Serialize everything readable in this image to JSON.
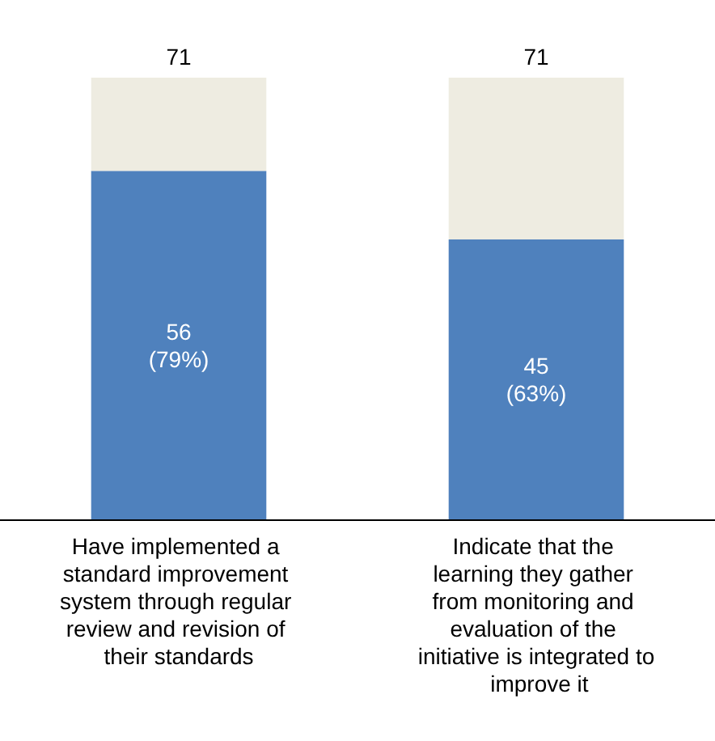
{
  "chart_data": {
    "type": "bar",
    "stacked": true,
    "categories": [
      "Have implemented a standard improvement system through regular review and revision of their standards",
      "Indicate that the learning they gather from monitoring and evaluation of the initiative is integrated to improve it"
    ],
    "series": [
      {
        "color": "#4f81bd",
        "values": [
          56,
          45
        ],
        "value_labels": [
          "56\n(79%)",
          "45\n(63%)"
        ]
      },
      {
        "color": "#eeece1",
        "values": [
          15,
          26
        ]
      }
    ],
    "totals": [
      "71",
      "71"
    ]
  }
}
